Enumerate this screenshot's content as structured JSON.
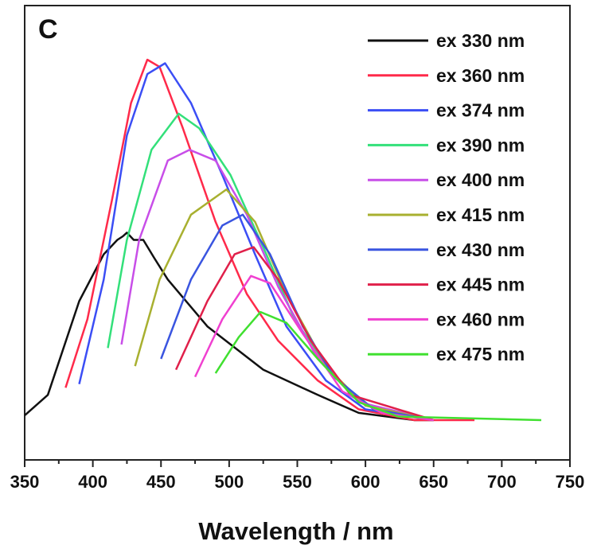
{
  "chart_data": {
    "type": "line",
    "panel_label": "C",
    "xlabel": "Wavelength / nm",
    "ylabel": "",
    "xlim": [
      350,
      750
    ],
    "ylim": [
      -0.11,
      1.15
    ],
    "x_ticks": [
      350,
      400,
      450,
      500,
      550,
      600,
      650,
      700,
      750
    ],
    "y_ticks_shown": false,
    "grid": false,
    "legend_position": "top-right",
    "series": [
      {
        "name": "ex 330 nm",
        "color": "#111111",
        "points": [
          [
            350,
            0.013
          ],
          [
            367,
            0.07
          ],
          [
            390,
            0.33
          ],
          [
            408,
            0.46
          ],
          [
            418,
            0.5
          ],
          [
            422,
            0.51
          ],
          [
            425,
            0.52
          ],
          [
            430,
            0.5
          ],
          [
            437,
            0.5
          ],
          [
            445,
            0.45
          ],
          [
            455,
            0.39
          ],
          [
            484,
            0.26
          ],
          [
            525,
            0.14
          ],
          [
            565,
            0.07
          ],
          [
            595,
            0.02
          ],
          [
            636,
            0.0
          ],
          [
            650,
            0.0
          ]
        ]
      },
      {
        "name": "ex 360 nm",
        "color": "#ff2a4a",
        "points": [
          [
            380,
            0.09
          ],
          [
            396,
            0.28
          ],
          [
            414,
            0.61
          ],
          [
            428,
            0.88
          ],
          [
            440,
            1.0
          ],
          [
            449,
            0.98
          ],
          [
            466,
            0.81
          ],
          [
            490,
            0.55
          ],
          [
            513,
            0.35
          ],
          [
            536,
            0.22
          ],
          [
            565,
            0.11
          ],
          [
            595,
            0.03
          ],
          [
            636,
            0.0
          ],
          [
            680,
            0.0
          ]
        ]
      },
      {
        "name": "ex 374 nm",
        "color": "#3b4ef5",
        "points": [
          [
            390,
            0.1
          ],
          [
            408,
            0.39
          ],
          [
            425,
            0.79
          ],
          [
            440,
            0.96
          ],
          [
            453,
            0.99
          ],
          [
            472,
            0.88
          ],
          [
            495,
            0.68
          ],
          [
            519,
            0.46
          ],
          [
            542,
            0.26
          ],
          [
            571,
            0.11
          ],
          [
            600,
            0.03
          ],
          [
            650,
            0.0
          ]
        ]
      },
      {
        "name": "ex 390 nm",
        "color": "#33e07a",
        "points": [
          [
            411,
            0.2
          ],
          [
            425,
            0.5
          ],
          [
            443,
            0.75
          ],
          [
            463,
            0.85
          ],
          [
            478,
            0.81
          ],
          [
            501,
            0.68
          ],
          [
            525,
            0.48
          ],
          [
            548,
            0.28
          ],
          [
            577,
            0.12
          ],
          [
            606,
            0.03
          ],
          [
            650,
            0.0
          ]
        ]
      },
      {
        "name": "ex 400 nm",
        "color": "#c84ee8",
        "points": [
          [
            421,
            0.21
          ],
          [
            434,
            0.5
          ],
          [
            455,
            0.72
          ],
          [
            471,
            0.75
          ],
          [
            490,
            0.72
          ],
          [
            513,
            0.57
          ],
          [
            536,
            0.37
          ],
          [
            565,
            0.17
          ],
          [
            595,
            0.05
          ],
          [
            650,
            0.0
          ]
        ]
      },
      {
        "name": "ex 415 nm",
        "color": "#a8b030",
        "points": [
          [
            431,
            0.15
          ],
          [
            449,
            0.39
          ],
          [
            472,
            0.57
          ],
          [
            498,
            0.64
          ],
          [
            519,
            0.55
          ],
          [
            542,
            0.35
          ],
          [
            571,
            0.15
          ],
          [
            600,
            0.04
          ],
          [
            650,
            0.0
          ]
        ]
      },
      {
        "name": "ex 430 nm",
        "color": "#3a55e0",
        "points": [
          [
            450,
            0.17
          ],
          [
            472,
            0.39
          ],
          [
            495,
            0.54
          ],
          [
            510,
            0.57
          ],
          [
            530,
            0.46
          ],
          [
            554,
            0.26
          ],
          [
            577,
            0.12
          ],
          [
            606,
            0.03
          ],
          [
            650,
            0.0
          ]
        ]
      },
      {
        "name": "ex 445 nm",
        "color": "#e0204a",
        "points": [
          [
            461,
            0.14
          ],
          [
            484,
            0.33
          ],
          [
            504,
            0.46
          ],
          [
            518,
            0.48
          ],
          [
            536,
            0.39
          ],
          [
            560,
            0.22
          ],
          [
            589,
            0.07
          ],
          [
            650,
            0.0
          ]
        ]
      },
      {
        "name": "ex 460 nm",
        "color": "#f040d0",
        "points": [
          [
            475,
            0.12
          ],
          [
            495,
            0.28
          ],
          [
            516,
            0.4
          ],
          [
            530,
            0.38
          ],
          [
            554,
            0.24
          ],
          [
            583,
            0.08
          ],
          [
            612,
            0.02
          ],
          [
            650,
            0.0
          ]
        ]
      },
      {
        "name": "ex 475 nm",
        "color": "#40e030",
        "points": [
          [
            490,
            0.13
          ],
          [
            507,
            0.23
          ],
          [
            523,
            0.3
          ],
          [
            542,
            0.27
          ],
          [
            565,
            0.17
          ],
          [
            595,
            0.05
          ],
          [
            624,
            0.01
          ],
          [
            729,
            0.0
          ]
        ]
      }
    ]
  }
}
